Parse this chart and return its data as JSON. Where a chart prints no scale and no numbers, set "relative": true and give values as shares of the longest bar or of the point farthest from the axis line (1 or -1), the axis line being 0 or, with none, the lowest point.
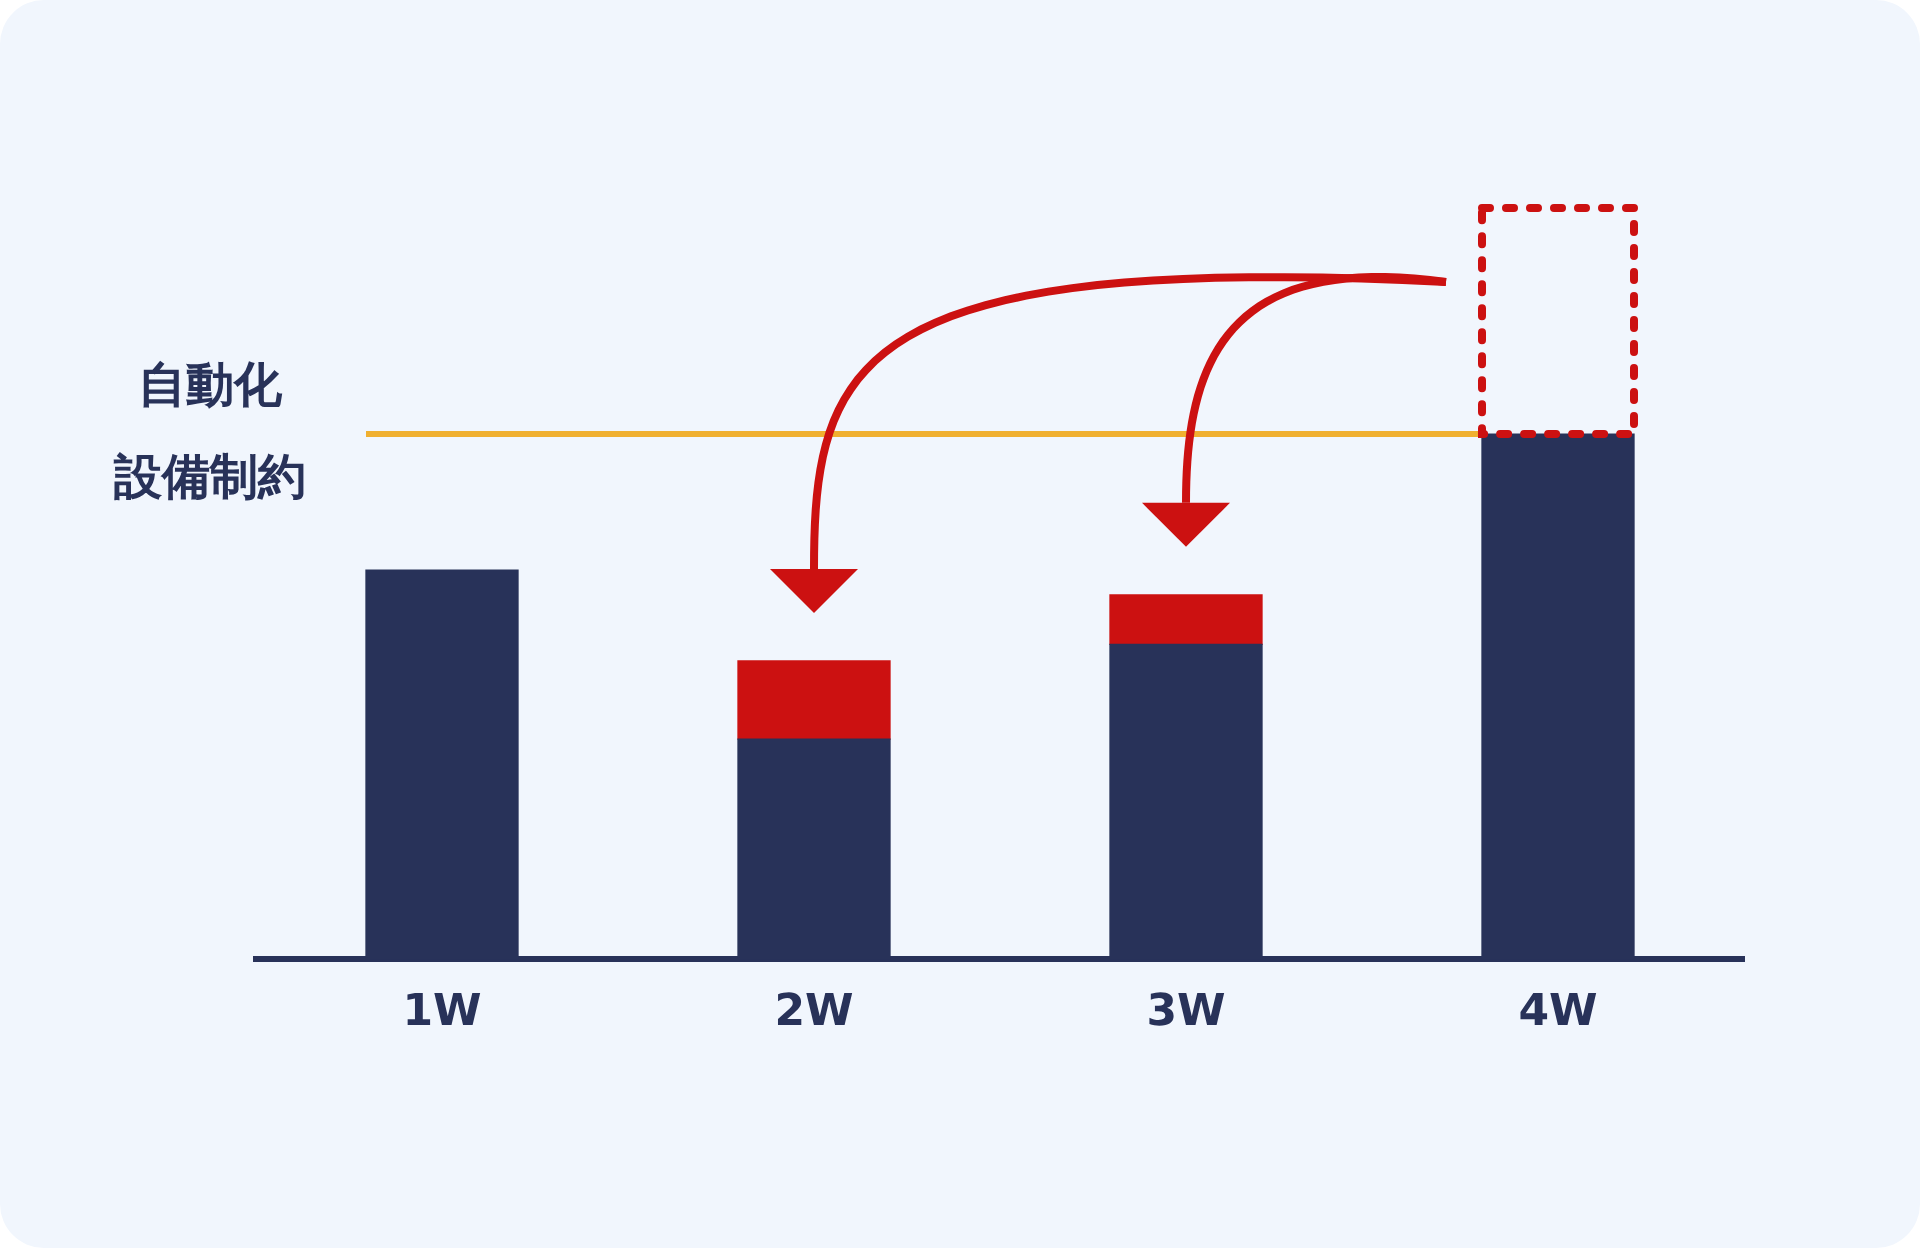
{
  "chart_data": {
    "type": "bar",
    "relative": true,
    "stacked": true,
    "legend": false,
    "grid": false,
    "categories": [
      "1W",
      "2W",
      "3W",
      "4W"
    ],
    "series": [
      {
        "color": "#283259",
        "values": [
          0.518,
          0.293,
          0.419,
          0.699
        ]
      },
      {
        "color": "#cc1111",
        "values": [
          null,
          0.104,
          0.066,
          null
        ]
      },
      {
        "color": "#cc1111",
        "line_style": "dotted",
        "values": [
          null,
          null,
          null,
          0.301
        ]
      }
    ],
    "ref_lines": [
      {
        "axis": "y",
        "value": 0.699,
        "label": "自動化設備制約",
        "color": "#f0b030"
      }
    ]
  }
}
